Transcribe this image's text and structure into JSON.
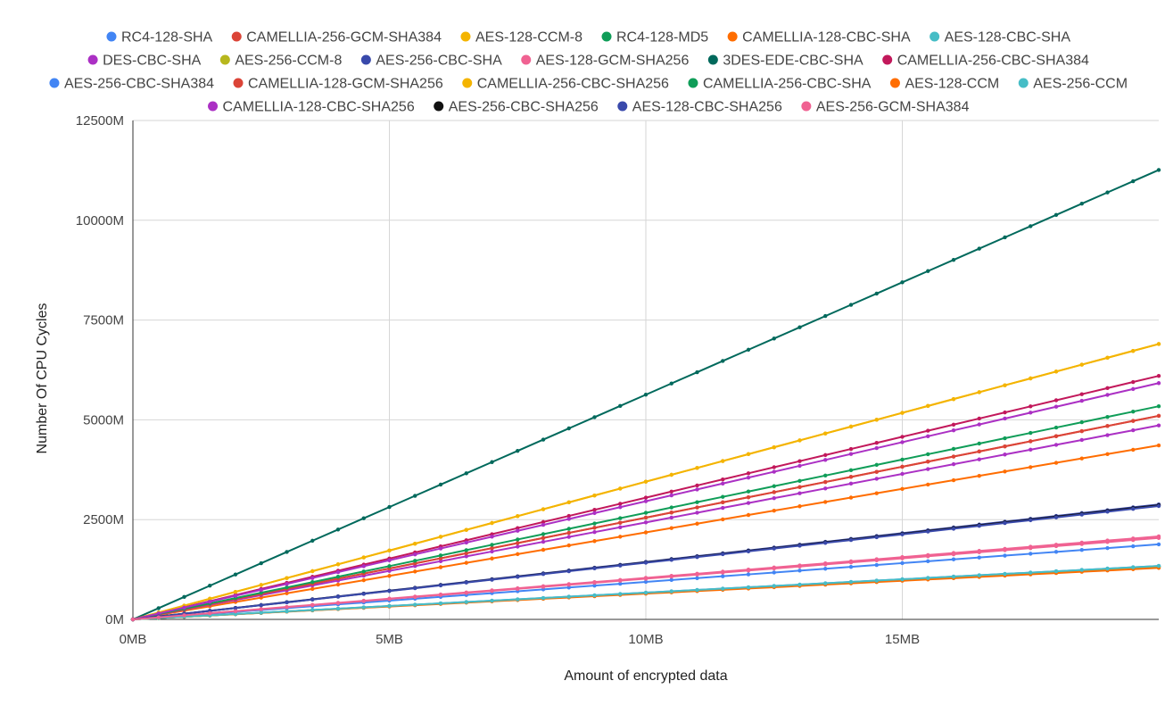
{
  "chart_data": {
    "type": "line",
    "title": "",
    "xlabel": "Amount of encrypted data",
    "ylabel": "Number Of CPU Cycles",
    "xlim": [
      0,
      20
    ],
    "ylim": [
      0,
      12500
    ],
    "x_unit": "MB",
    "y_unit": "M",
    "x_ticks": [
      0,
      5,
      10,
      15
    ],
    "x_tick_labels": [
      "0MB",
      "5MB",
      "10MB",
      "15MB"
    ],
    "y_ticks": [
      0,
      2500,
      5000,
      7500,
      10000,
      12500
    ],
    "y_tick_labels": [
      "0M",
      "2500M",
      "5000M",
      "7500M",
      "10000M",
      "12500M"
    ],
    "grid": true,
    "legend_position": "top",
    "marker": "dot",
    "x_step": 0.5,
    "series": [
      {
        "name": "RC4-128-SHA",
        "color": "#4285f4",
        "slope": 67.0
      },
      {
        "name": "CAMELLIA-256-GCM-SHA384",
        "color": "#db4437",
        "slope": 255.0
      },
      {
        "name": "AES-128-CCM-8",
        "color": "#f4b400",
        "slope": 345.0
      },
      {
        "name": "RC4-128-MD5",
        "color": "#0f9d58",
        "slope": 66.0
      },
      {
        "name": "CAMELLIA-128-CBC-SHA",
        "color": "#ff6d00",
        "slope": 218.0
      },
      {
        "name": "AES-128-CBC-SHA",
        "color": "#46bdc6",
        "slope": 66.0
      },
      {
        "name": "DES-CBC-SHA",
        "color": "#ab30c4",
        "slope": 243.0
      },
      {
        "name": "AES-256-CCM-8",
        "color": "#b7b71d",
        "slope": 66.0
      },
      {
        "name": "AES-256-CBC-SHA",
        "color": "#3949ab",
        "slope": 144.0
      },
      {
        "name": "AES-128-GCM-SHA256",
        "color": "#f06292",
        "slope": 104.0
      },
      {
        "name": "3DES-EDE-CBC-SHA",
        "color": "#00695c",
        "slope": 563.0
      },
      {
        "name": "CAMELLIA-256-CBC-SHA384",
        "color": "#c2185b",
        "slope": 305.0
      },
      {
        "name": "AES-256-CBC-SHA384",
        "color": "#4285f4",
        "slope": 94.0
      },
      {
        "name": "CAMELLIA-128-GCM-SHA256",
        "color": "#db4437",
        "slope": 255.0
      },
      {
        "name": "CAMELLIA-256-CBC-SHA256",
        "color": "#f4b400",
        "slope": 345.0
      },
      {
        "name": "CAMELLIA-256-CBC-SHA",
        "color": "#0f9d58",
        "slope": 267.0
      },
      {
        "name": "AES-128-CCM",
        "color": "#ff6d00",
        "slope": 64.5
      },
      {
        "name": "AES-256-CCM",
        "color": "#46bdc6",
        "slope": 67.0
      },
      {
        "name": "CAMELLIA-128-CBC-SHA256",
        "color": "#ab30c4",
        "slope": 296.0
      },
      {
        "name": "AES-256-CBC-SHA256",
        "color": "#111111",
        "slope": 143.0
      },
      {
        "name": "AES-128-CBC-SHA256",
        "color": "#3949ab",
        "slope": 142.0
      },
      {
        "name": "AES-256-GCM-SHA384",
        "color": "#f06292",
        "slope": 102.0
      }
    ]
  }
}
